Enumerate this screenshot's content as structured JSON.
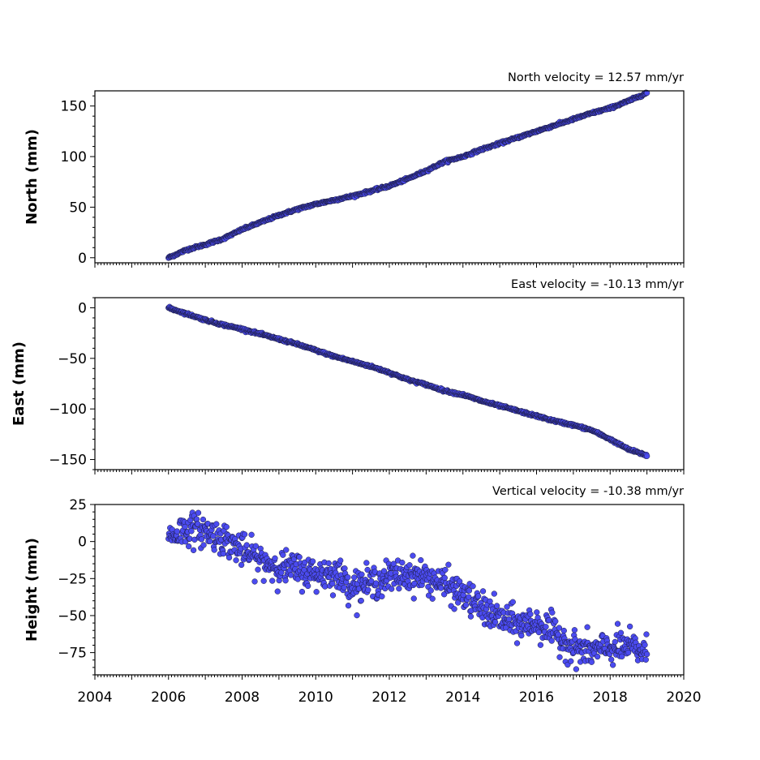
{
  "chart_data": [
    {
      "type": "scatter",
      "title": "North velocity = 12.57 mm/yr",
      "ylabel": "North (mm)",
      "xlim": [
        2004,
        2020
      ],
      "ylim": [
        -5,
        165
      ],
      "yticks": [
        0,
        50,
        100,
        150
      ],
      "x_ticklabels_visible": false,
      "marker_color": "#4b4bf0",
      "marker_edge_color": "#1a1a3a",
      "series": [
        {
          "x": [
            2006.0,
            2006.5,
            2007.0,
            2007.5,
            2008.0,
            2008.5,
            2009.0,
            2009.5,
            2010.0,
            2010.5,
            2011.0,
            2011.5,
            2012.0,
            2012.5,
            2013.0,
            2013.5,
            2014.0,
            2014.5,
            2015.0,
            2015.5,
            2016.0,
            2016.5,
            2017.0,
            2017.5,
            2018.0,
            2018.5,
            2019.0
          ],
          "y": [
            0,
            8,
            13,
            19,
            28,
            35,
            42,
            48,
            53,
            57,
            61,
            66,
            71,
            78,
            86,
            95,
            100,
            107,
            113,
            119,
            125,
            131,
            137,
            143,
            148,
            155,
            163
          ]
        }
      ]
    },
    {
      "type": "scatter",
      "title": "East velocity = -10.13 mm/yr",
      "ylabel": "East (mm)",
      "xlim": [
        2004,
        2020
      ],
      "ylim": [
        -160,
        10
      ],
      "yticks": [
        0,
        -50,
        -100,
        -150
      ],
      "x_ticklabels_visible": false,
      "marker_color": "#4b4bf0",
      "marker_edge_color": "#1a1a3a",
      "series": [
        {
          "x": [
            2006.0,
            2006.5,
            2007.0,
            2007.5,
            2008.0,
            2008.5,
            2009.0,
            2009.5,
            2010.0,
            2010.5,
            2011.0,
            2011.5,
            2012.0,
            2012.5,
            2013.0,
            2013.5,
            2014.0,
            2014.5,
            2015.0,
            2015.5,
            2016.0,
            2016.5,
            2017.0,
            2017.5,
            2018.0,
            2018.5,
            2019.0
          ],
          "y": [
            0,
            -6,
            -12,
            -17,
            -21,
            -26,
            -31,
            -36,
            -42,
            -48,
            -53,
            -58,
            -64,
            -71,
            -76,
            -82,
            -86,
            -92,
            -97,
            -102,
            -107,
            -112,
            -116,
            -121,
            -130,
            -140,
            -146
          ]
        }
      ]
    },
    {
      "type": "scatter",
      "title": "Vertical velocity = -10.38 mm/yr",
      "ylabel": "Height (mm)",
      "xlabel": "",
      "xlim": [
        2004,
        2020
      ],
      "ylim": [
        -90,
        25
      ],
      "yticks": [
        25,
        0,
        -25,
        -50,
        -75
      ],
      "xticks": [
        2004,
        2006,
        2008,
        2010,
        2012,
        2014,
        2016,
        2018,
        2020
      ],
      "x_ticklabels_visible": true,
      "marker_color": "#4b4bf0",
      "marker_edge_color": "#1a1a3a",
      "scatter_spread_mm": 12,
      "series": [
        {
          "x": [
            2006.0,
            2006.5,
            2007.0,
            2007.5,
            2008.0,
            2008.5,
            2009.0,
            2009.5,
            2010.0,
            2010.5,
            2011.0,
            2011.5,
            2012.0,
            2012.5,
            2013.0,
            2013.5,
            2014.0,
            2014.5,
            2015.0,
            2015.5,
            2016.0,
            2016.5,
            2017.0,
            2017.5,
            2018.0,
            2018.5,
            2019.0
          ],
          "y": [
            3,
            9,
            7,
            2,
            -6,
            -13,
            -17,
            -19,
            -22,
            -21,
            -30,
            -28,
            -24,
            -22,
            -24,
            -29,
            -36,
            -45,
            -52,
            -56,
            -55,
            -62,
            -72,
            -74,
            -72,
            -71,
            -75
          ]
        }
      ]
    }
  ]
}
